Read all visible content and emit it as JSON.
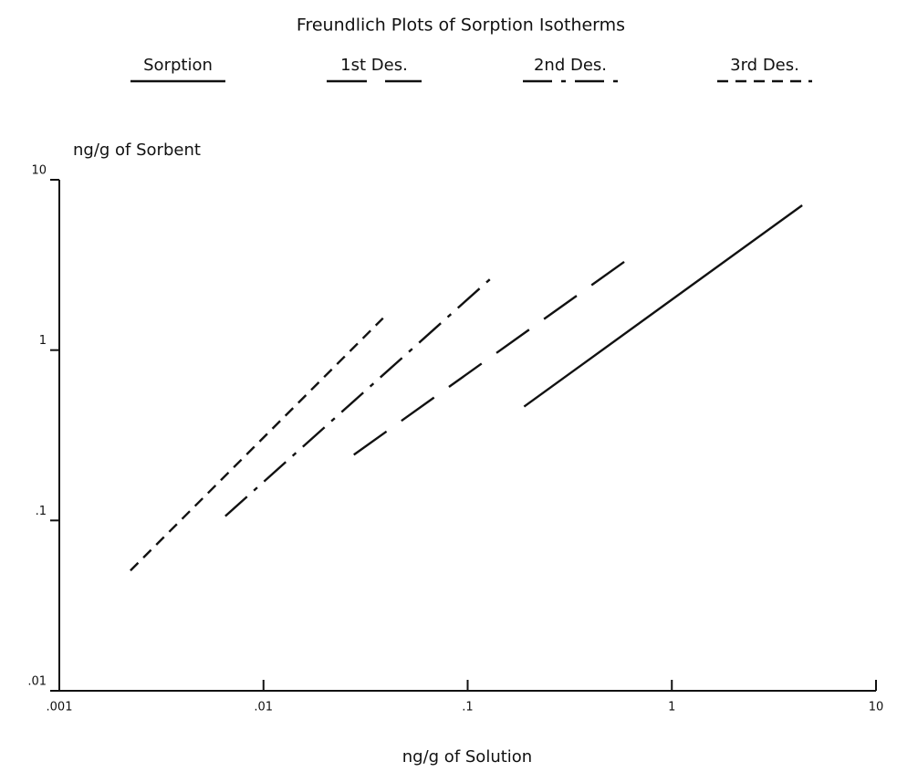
{
  "chart_data": {
    "type": "line",
    "title": "Freundlich Plots of Sorption Isotherms",
    "xlabel": "ng/g of Solution",
    "ylabel": "ng/g of Sorbent",
    "xscale": "log",
    "yscale": "log",
    "xlim": [
      0.001,
      10
    ],
    "ylim": [
      0.01,
      10
    ],
    "xticks": [
      {
        "value": 0.001,
        "label": ".001"
      },
      {
        "value": 0.01,
        "label": ".01"
      },
      {
        "value": 0.1,
        "label": ".1"
      },
      1,
      10
    ],
    "yticks": [
      {
        "value": 0.01,
        "label": ".01"
      },
      {
        "value": 0.1,
        "label": ".1"
      },
      1,
      10
    ],
    "legend": "top",
    "series": [
      {
        "name": "Sorption",
        "color": "#111111",
        "dash": "solid",
        "x": [
          0.189,
          4.35
        ],
        "values": [
          0.466,
          7.08
        ]
      },
      {
        "name": "1st Des.",
        "color": "#111111",
        "dash": "long-dash",
        "x": [
          0.0277,
          0.637
        ],
        "values": [
          0.243,
          3.55
        ]
      },
      {
        "name": "2nd Des.",
        "color": "#111111",
        "dash": "dash-dot",
        "x": [
          0.0065,
          0.132
        ],
        "values": [
          0.106,
          2.68
        ]
      },
      {
        "name": "3rd Des.",
        "color": "#111111",
        "dash": "short-dash",
        "x": [
          0.00223,
          0.0385
        ],
        "values": [
          0.0508,
          1.54
        ]
      }
    ]
  }
}
